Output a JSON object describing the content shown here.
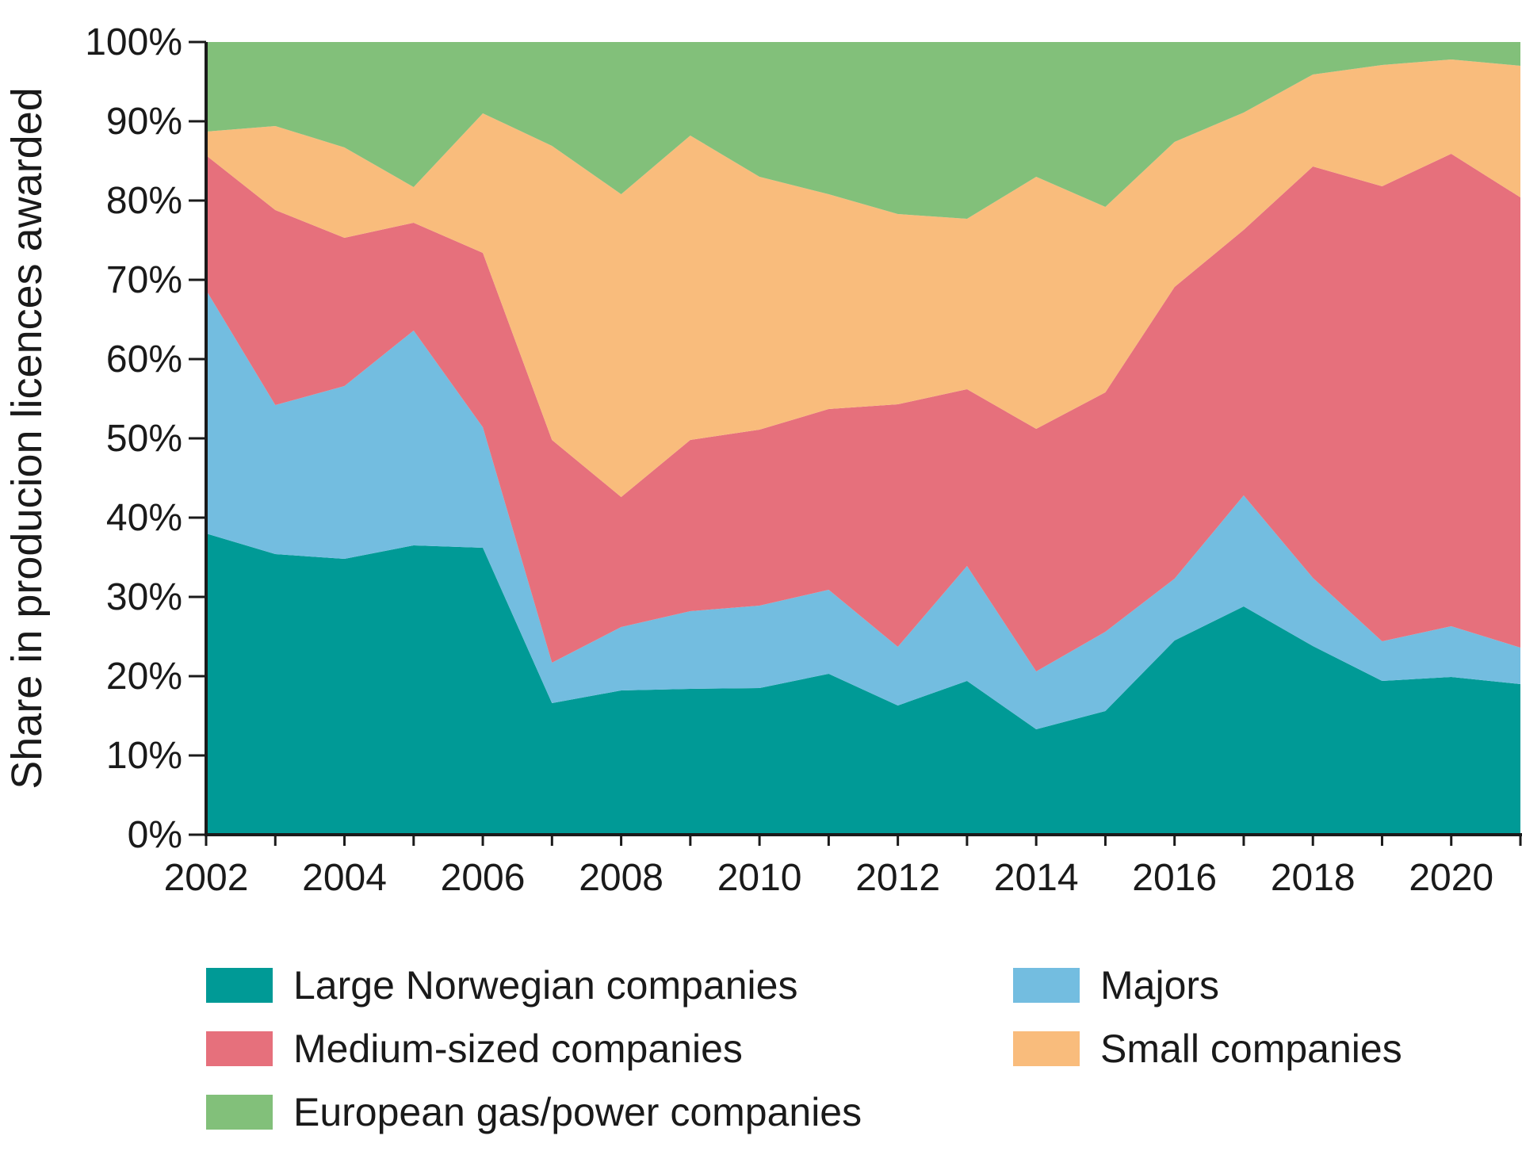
{
  "chart_data": {
    "type": "area",
    "stacked": true,
    "title": "",
    "xlabel": "",
    "ylabel": "Share in producion licences awarded",
    "x": [
      2002,
      2003,
      2004,
      2005,
      2006,
      2007,
      2008,
      2009,
      2010,
      2011,
      2012,
      2013,
      2014,
      2015,
      2016,
      2017,
      2018,
      2019,
      2020,
      2021
    ],
    "xticks": [
      "2002",
      "2004",
      "2006",
      "2008",
      "2010",
      "2012",
      "2014",
      "2016",
      "2018",
      "2020"
    ],
    "yticks": [
      "0%",
      "10%",
      "20%",
      "30%",
      "40%",
      "50%",
      "60%",
      "70%",
      "80%",
      "90%",
      "100%"
    ],
    "ylim": [
      0,
      100
    ],
    "grid": false,
    "legend_position": "bottom",
    "series": [
      {
        "name": "Large Norwegian companies",
        "color": "#009a96",
        "values": [
          38.0,
          35.4,
          34.8,
          36.5,
          36.2,
          16.6,
          18.2,
          18.4,
          18.5,
          20.3,
          16.3,
          19.4,
          13.3,
          15.6,
          24.5,
          28.8,
          23.8,
          19.4,
          19.9,
          19.0
        ]
      },
      {
        "name": "Majors",
        "color": "#73bde0",
        "values": [
          30.7,
          18.8,
          21.8,
          27.1,
          15.2,
          5.1,
          8.0,
          9.8,
          10.4,
          10.6,
          7.4,
          14.5,
          7.3,
          10.0,
          7.8,
          14.0,
          8.6,
          5.0,
          6.4,
          4.6
        ]
      },
      {
        "name": "Medium-sized companies",
        "color": "#e6707c",
        "values": [
          17.0,
          24.6,
          18.7,
          13.6,
          22.0,
          28.1,
          16.4,
          21.6,
          22.2,
          22.8,
          30.6,
          22.3,
          30.6,
          30.2,
          36.8,
          33.5,
          51.9,
          57.4,
          59.6,
          56.8
        ]
      },
      {
        "name": "Small companies",
        "color": "#f9bc7c",
        "values": [
          3.0,
          10.6,
          11.4,
          4.5,
          17.6,
          37.1,
          38.2,
          38.4,
          31.9,
          27.1,
          24.0,
          21.5,
          31.8,
          23.4,
          18.3,
          14.8,
          11.6,
          15.3,
          11.9,
          16.6
        ]
      },
      {
        "name": "European gas/power companies",
        "color": "#82c07a",
        "values": [
          11.3,
          10.6,
          13.3,
          18.3,
          9.0,
          13.1,
          19.2,
          11.8,
          17.0,
          19.2,
          21.7,
          22.3,
          17.0,
          20.8,
          12.6,
          8.9,
          4.1,
          2.9,
          2.2,
          3.0
        ]
      }
    ],
    "legend_items": [
      {
        "label": "Large Norwegian companies",
        "color": "#009a96"
      },
      {
        "label": "Majors",
        "color": "#73bde0"
      },
      {
        "label": "Medium-sized companies",
        "color": "#e6707c"
      },
      {
        "label": "Small companies",
        "color": "#f9bc7c"
      },
      {
        "label": "European gas/power companies",
        "color": "#82c07a"
      }
    ]
  }
}
